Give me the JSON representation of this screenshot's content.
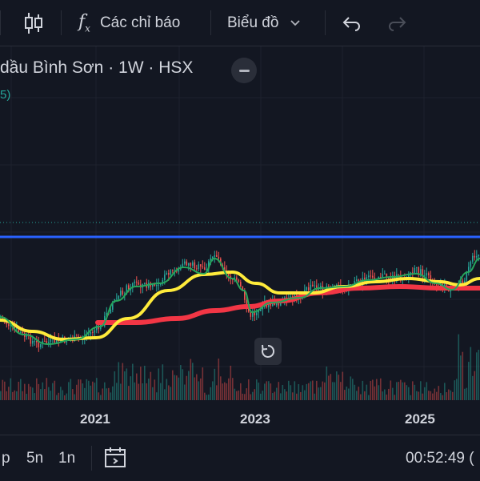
{
  "toolbar": {
    "indicators_label": "Các chỉ báo",
    "chart_type_label": "Biểu đồ"
  },
  "legend": {
    "title": "dầu Bình Sơn · 1W · HSX",
    "subtitle": "5)"
  },
  "xaxis": {
    "labels": [
      "2021",
      "2023",
      "2025"
    ]
  },
  "bottom": {
    "ranges": [
      "p",
      "5n",
      "1n"
    ],
    "time": "00:52:49 ("
  },
  "colors": {
    "background": "#131722",
    "ma_short": "#26a65b",
    "ma_mid": "#ffeb3b",
    "ma_long": "#f23645",
    "horizontal_line": "#2962ff",
    "up": "#26a69a",
    "down": "#ef5350"
  }
}
